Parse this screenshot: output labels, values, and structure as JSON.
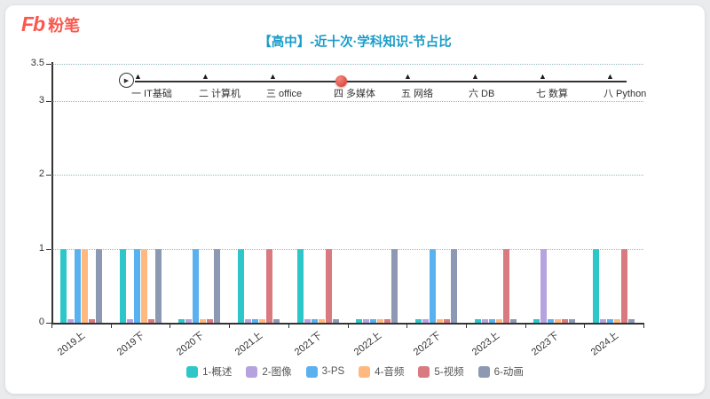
{
  "page": {
    "background": "#e9ebed",
    "card_background": "#ffffff"
  },
  "logo": {
    "fb": "Fb",
    "name": "粉笔",
    "color": "#fb574e"
  },
  "title": {
    "text": "【高中】-近十次·学科知识-节占比",
    "color": "#1a9cc9"
  },
  "icons": {
    "play_icon": "▶",
    "step_marker_icon": "▲"
  },
  "timeline": {
    "active_color": "#d9332a",
    "steps": [
      {
        "label": "一 IT基础",
        "active": false
      },
      {
        "label": "二 计算机",
        "active": false
      },
      {
        "label": "三 office",
        "active": false
      },
      {
        "label": "四 多媒体",
        "active": true
      },
      {
        "label": "五 网络",
        "active": false
      },
      {
        "label": "六 DB",
        "active": false
      },
      {
        "label": "七 数算",
        "active": false
      },
      {
        "label": "八 Python",
        "active": false
      }
    ]
  },
  "chart_data": {
    "type": "bar",
    "title": "【高中】-近十次·学科知识-节占比",
    "categories": [
      "2019上",
      "2019下",
      "2020下",
      "2021上",
      "2021下",
      "2022上",
      "2022下",
      "2023上",
      "2023下",
      "2024上"
    ],
    "series": [
      {
        "name": "1-概述",
        "color": "#2ec7c9",
        "values": [
          1,
          1,
          0.05,
          1,
          1,
          0.05,
          0.05,
          0.05,
          0.05,
          1
        ]
      },
      {
        "name": "2-图像",
        "color": "#b6a2de",
        "values": [
          0.05,
          0.05,
          0.05,
          0.05,
          0.05,
          0.05,
          0.05,
          0.05,
          1,
          0.05
        ]
      },
      {
        "name": "3-PS",
        "color": "#5ab1ef",
        "values": [
          1,
          1,
          1,
          0.05,
          0.05,
          0.05,
          1,
          0.05,
          0.05,
          0.05
        ]
      },
      {
        "name": "4-音频",
        "color": "#ffb980",
        "values": [
          1,
          1,
          0.05,
          0.05,
          0.05,
          0.05,
          0.05,
          0.05,
          0.05,
          0.05
        ]
      },
      {
        "name": "5-视频",
        "color": "#d87a80",
        "values": [
          0.05,
          0.05,
          0.05,
          1,
          1,
          0.05,
          0.05,
          1,
          0.05,
          1
        ]
      },
      {
        "name": "6-动画",
        "color": "#8d98b3",
        "values": [
          1,
          1,
          1,
          0.05,
          0.05,
          1,
          1,
          0.05,
          0.05,
          0.05
        ]
      }
    ],
    "y_ticks": [
      0,
      1,
      2,
      3,
      3.5
    ],
    "ylim": [
      0,
      3.5
    ],
    "xlabel": "",
    "ylabel": "",
    "grid": "dotted-horizontal",
    "legend_position": "bottom"
  }
}
